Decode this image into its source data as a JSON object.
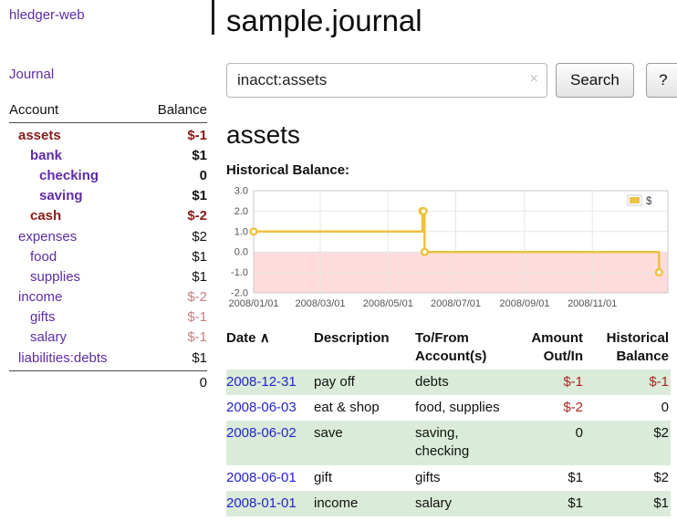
{
  "app": {
    "brand": "hledger-web",
    "nav": {
      "journal": "Journal"
    }
  },
  "sidebar": {
    "headers": {
      "account": "Account",
      "balance": "Balance"
    },
    "accounts": [
      {
        "label": "assets",
        "balance": "$-1",
        "name_class": "lvl0 bold neg-strong",
        "bal_class": "bold neg-strong"
      },
      {
        "label": "bank",
        "balance": "$1",
        "name_class": "lvl1 bold",
        "bal_class": "bold"
      },
      {
        "label": "checking",
        "balance": "0",
        "name_class": "lvl2 bold",
        "bal_class": "bold"
      },
      {
        "label": "saving",
        "balance": "$1",
        "name_class": "lvl2 bold",
        "bal_class": "bold"
      },
      {
        "label": "cash",
        "balance": "$-2",
        "name_class": "lvl1 bold neg-strong",
        "bal_class": "bold neg-strong"
      },
      {
        "label": "expenses",
        "balance": "$2",
        "name_class": "lvl0",
        "bal_class": ""
      },
      {
        "label": "food",
        "balance": "$1",
        "name_class": "lvl1",
        "bal_class": ""
      },
      {
        "label": "supplies",
        "balance": "$1",
        "name_class": "lvl1",
        "bal_class": ""
      },
      {
        "label": "income",
        "balance": "$-2",
        "name_class": "lvl0",
        "bal_class": "neg-soft"
      },
      {
        "label": "gifts",
        "balance": "$-1",
        "name_class": "lvl1",
        "bal_class": "neg-soft"
      },
      {
        "label": "salary",
        "balance": "$-1",
        "name_class": "lvl1",
        "bal_class": "neg-soft"
      },
      {
        "label": "liabilities:debts",
        "balance": "$1",
        "name_class": "lvl0",
        "bal_class": ""
      }
    ],
    "total": "0"
  },
  "main": {
    "title": "sample.journal",
    "search": {
      "value": "inacct:assets",
      "clear_icon": "×",
      "search_button": "Search",
      "help_button": "?"
    },
    "account_heading": "assets",
    "chart_title": "Historical Balance:"
  },
  "chart_data": {
    "type": "line",
    "style": "step",
    "title": "Historical Balance:",
    "series": [
      {
        "name": "$",
        "color": "#edc240",
        "points": [
          [
            "2008-01-01",
            1
          ],
          [
            "2008-06-01",
            2
          ],
          [
            "2008-06-02",
            2
          ],
          [
            "2008-06-03",
            0
          ],
          [
            "2008-12-31",
            -1
          ]
        ]
      }
    ],
    "x_domain": [
      "2008-01-01",
      "2009-01-08"
    ],
    "ylim": [
      -2,
      3
    ],
    "ytick_values": [
      3,
      2,
      1,
      0,
      -1,
      -2
    ],
    "yticks": [
      "3.0",
      "2.0",
      "1.0",
      "0.0",
      "-1.0",
      "-2.0"
    ],
    "xticks": [
      {
        "label": "2008/01/01",
        "date": "2008-01-01"
      },
      {
        "label": "2008/03/01",
        "date": "2008-03-01"
      },
      {
        "label": "2008/05/01",
        "date": "2008-05-01"
      },
      {
        "label": "2008/07/01",
        "date": "2008-07-01"
      },
      {
        "label": "2008/09/01",
        "date": "2008-09-01"
      },
      {
        "label": "2008/11/01",
        "date": "2008-11-01"
      }
    ],
    "negative_region": {
      "from": 0,
      "to": -2,
      "color": "#ffdcdc"
    },
    "grid": true,
    "legend_position": "top-right"
  },
  "register": {
    "headers": {
      "date": "Date",
      "sort_indicator": "∧",
      "description": "Description",
      "account": "To/From Account(s)",
      "amount": "Amount Out/In",
      "balance": "Historical Balance"
    },
    "rows": [
      {
        "date": "2008-12-31",
        "description": "pay off",
        "accounts": "debts",
        "amount": "$-1",
        "balance": "$-1",
        "amount_class": "neg",
        "balance_class": "neg"
      },
      {
        "date": "2008-06-03",
        "description": "eat & shop",
        "accounts": "food, supplies",
        "amount": "$-2",
        "balance": "0",
        "amount_class": "neg",
        "balance_class": ""
      },
      {
        "date": "2008-06-02",
        "description": "save",
        "accounts": "saving, checking",
        "amount": "0",
        "balance": "$2",
        "amount_class": "",
        "balance_class": ""
      },
      {
        "date": "2008-06-01",
        "description": "gift",
        "accounts": "gifts",
        "amount": "$1",
        "balance": "$2",
        "amount_class": "",
        "balance_class": ""
      },
      {
        "date": "2008-01-01",
        "description": "income",
        "accounts": "salary",
        "amount": "$1",
        "balance": "$1",
        "amount_class": "",
        "balance_class": ""
      }
    ]
  },
  "colors": {
    "link_purple": "#5e2ca5",
    "link_blue": "#2323cc",
    "negative_strong": "#8b1a1a",
    "negative": "#b02121",
    "negative_soft": "#c58080",
    "row_stripe_green": "#daecd9",
    "chart_line": "#edc240",
    "chart_negative_fill": "#ffdcdc"
  }
}
